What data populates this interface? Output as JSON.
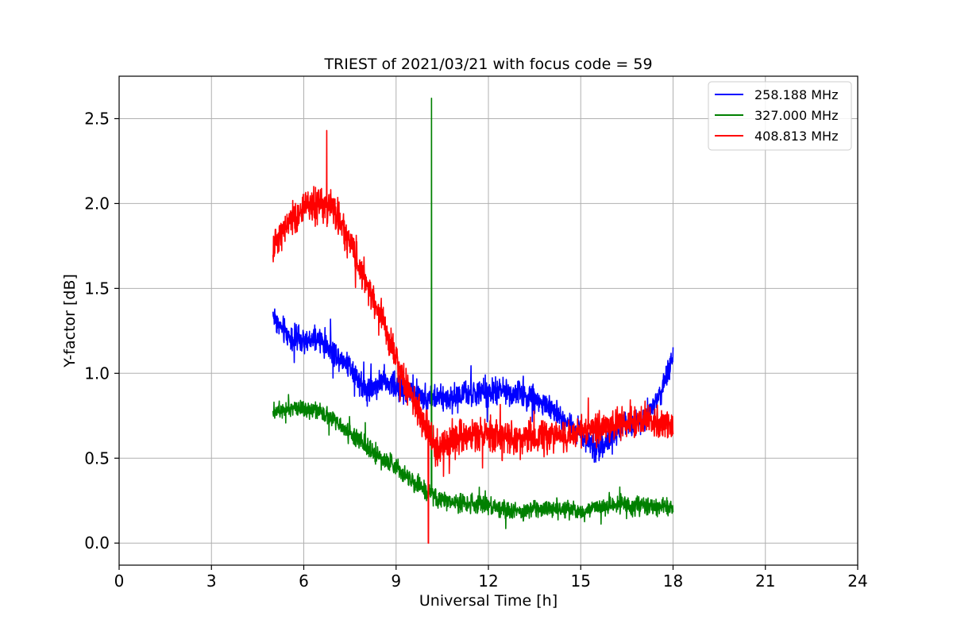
{
  "chart_data": {
    "type": "line",
    "title": "TRIEST of 2021/03/21 with focus code = 59",
    "xlabel": "Universal Time [h]",
    "ylabel": "Y-factor [dB]",
    "xlim": [
      0,
      24
    ],
    "ylim": [
      -0.13,
      2.75
    ],
    "xticks": [
      0,
      3,
      6,
      9,
      12,
      15,
      18,
      21,
      24
    ],
    "yticks": [
      0.0,
      0.5,
      1.0,
      1.5,
      2.0,
      2.5
    ],
    "xtick_labels": [
      "0",
      "3",
      "6",
      "9",
      "12",
      "15",
      "18",
      "21",
      "24"
    ],
    "ytick_labels": [
      "0.0",
      "0.5",
      "1.0",
      "1.5",
      "2.0",
      "2.5"
    ],
    "grid": true,
    "legend_position": "top-right",
    "series": [
      {
        "name": "258.188 MHz",
        "color": "#0000ff",
        "noise": 0.07,
        "x": [
          5.0,
          5.2,
          5.5,
          6.0,
          6.5,
          7.0,
          7.5,
          8.0,
          8.5,
          9.0,
          9.5,
          10.0,
          10.5,
          11.0,
          11.5,
          12.0,
          12.5,
          13.0,
          13.5,
          14.0,
          14.5,
          15.0,
          15.5,
          16.0,
          16.5,
          17.0,
          17.5,
          17.8,
          18.0
        ],
        "y": [
          1.35,
          1.28,
          1.22,
          1.18,
          1.2,
          1.12,
          1.05,
          0.9,
          0.95,
          0.92,
          0.88,
          0.86,
          0.85,
          0.87,
          0.88,
          0.88,
          0.9,
          0.88,
          0.85,
          0.8,
          0.72,
          0.65,
          0.55,
          0.62,
          0.7,
          0.72,
          0.85,
          0.98,
          1.1
        ]
      },
      {
        "name": "327.000 MHz",
        "color": "#008000",
        "noise": 0.05,
        "x": [
          5.0,
          5.5,
          6.0,
          6.5,
          7.0,
          7.5,
          8.0,
          8.5,
          9.0,
          9.5,
          10.0,
          10.5,
          11.0,
          11.5,
          12.0,
          12.5,
          13.0,
          13.5,
          14.0,
          14.5,
          15.0,
          15.5,
          16.0,
          16.5,
          17.0,
          17.5,
          18.0
        ],
        "y": [
          0.78,
          0.8,
          0.8,
          0.77,
          0.72,
          0.65,
          0.58,
          0.5,
          0.45,
          0.37,
          0.3,
          0.25,
          0.24,
          0.23,
          0.22,
          0.2,
          0.18,
          0.2,
          0.2,
          0.2,
          0.19,
          0.2,
          0.23,
          0.22,
          0.22,
          0.21,
          0.22
        ],
        "spikes": [
          [
            10.15,
            2.62
          ]
        ]
      },
      {
        "name": "408.813 MHz",
        "color": "#ff0000",
        "noise": 0.09,
        "x": [
          5.0,
          5.3,
          5.6,
          6.0,
          6.5,
          7.0,
          7.3,
          7.6,
          8.0,
          8.5,
          9.0,
          9.5,
          10.0,
          10.3,
          10.6,
          11.0,
          11.5,
          12.0,
          12.5,
          13.0,
          13.5,
          14.0,
          14.5,
          15.0,
          15.5,
          16.0,
          16.5,
          17.0,
          17.5,
          18.0
        ],
        "y": [
          1.72,
          1.85,
          1.9,
          1.97,
          2.0,
          1.95,
          1.85,
          1.72,
          1.55,
          1.35,
          1.08,
          0.85,
          0.68,
          0.55,
          0.58,
          0.62,
          0.64,
          0.65,
          0.63,
          0.6,
          0.62,
          0.64,
          0.63,
          0.66,
          0.68,
          0.7,
          0.71,
          0.72,
          0.71,
          0.7
        ],
        "spikes": [
          [
            10.05,
            0.0
          ],
          [
            6.75,
            2.43
          ]
        ]
      }
    ]
  }
}
